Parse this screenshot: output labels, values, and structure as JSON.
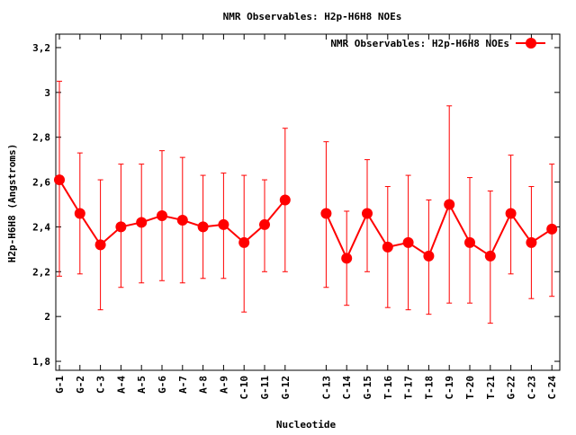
{
  "chart_data": {
    "type": "line",
    "title": "NMR Observables: H2p-H6H8 NOEs",
    "xlabel": "Nucleotide",
    "ylabel": "H2p-H6H8 (Angstroms)",
    "ylim": [
      1.76,
      3.26
    ],
    "yticks": [
      "1,8",
      "2",
      "2,2",
      "2,4",
      "2,6",
      "2,8",
      "3",
      "3,2"
    ],
    "ytick_values": [
      1.8,
      2.0,
      2.2,
      2.4,
      2.6,
      2.8,
      3.0,
      3.2
    ],
    "grid": false,
    "legend_placement": "top-right",
    "color": "#ff0000",
    "series": [
      {
        "name": "NMR Observables: H2p-H6H8 NOEs",
        "categories": [
          "G-1",
          "G-2",
          "C-3",
          "A-4",
          "A-5",
          "G-6",
          "A-7",
          "A-8",
          "A-9",
          "C-10",
          "G-11",
          "G-12",
          "C-13",
          "C-14",
          "G-15",
          "T-16",
          "T-17",
          "T-18",
          "C-19",
          "T-20",
          "T-21",
          "G-22",
          "C-23",
          "C-24"
        ],
        "segments": [
          [
            0,
            11
          ],
          [
            12,
            23
          ]
        ],
        "values": [
          2.61,
          2.46,
          2.32,
          2.4,
          2.42,
          2.45,
          2.43,
          2.4,
          2.41,
          2.33,
          2.41,
          2.52,
          2.46,
          2.26,
          2.46,
          2.31,
          2.33,
          2.27,
          2.5,
          2.33,
          2.27,
          2.46,
          2.33,
          2.39
        ],
        "err_low": [
          2.18,
          2.19,
          2.03,
          2.13,
          2.15,
          2.16,
          2.15,
          2.17,
          2.17,
          2.02,
          2.2,
          2.2,
          2.13,
          2.05,
          2.2,
          2.04,
          2.03,
          2.01,
          2.06,
          2.06,
          1.97,
          2.19,
          2.08,
          2.09
        ],
        "err_high": [
          3.05,
          2.73,
          2.61,
          2.68,
          2.68,
          2.74,
          2.71,
          2.63,
          2.64,
          2.63,
          2.61,
          2.84,
          2.78,
          2.47,
          2.7,
          2.58,
          2.63,
          2.52,
          2.94,
          2.62,
          2.56,
          2.72,
          2.58,
          2.68
        ]
      }
    ]
  }
}
